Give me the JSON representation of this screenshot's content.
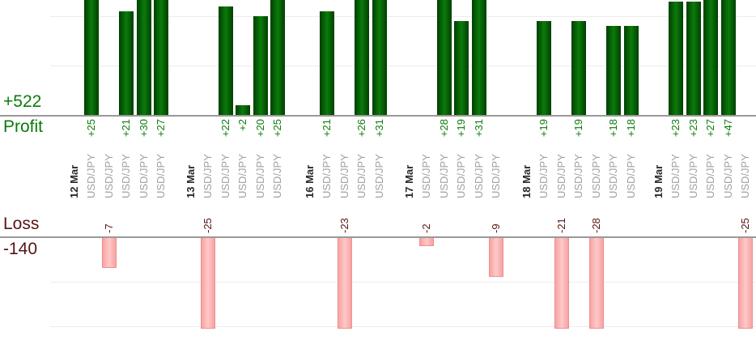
{
  "chart_data": {
    "type": "bar",
    "title": "",
    "description": "Daily trade results: profit bars above axis, loss bars below axis",
    "currency_pair": "USD/JPY",
    "profit": {
      "label": "Profit",
      "total": 522,
      "total_label": "+522"
    },
    "loss": {
      "label": "Loss",
      "total": -140,
      "total_label": "-140"
    },
    "gridlines": "horizontal, every 10 units, light gray",
    "legend_position": "none",
    "groups": [
      {
        "date": "12 Mar",
        "trades": [
          {
            "pair": "USD/JPY",
            "value": 25,
            "label": "+25"
          },
          {
            "pair": "USD/JPY",
            "value": -7,
            "label": "-7"
          },
          {
            "pair": "USD/JPY",
            "value": 21,
            "label": "+21"
          },
          {
            "pair": "USD/JPY",
            "value": 30,
            "label": "+30"
          },
          {
            "pair": "USD/JPY",
            "value": 27,
            "label": "+27"
          }
        ]
      },
      {
        "date": "13 Mar",
        "trades": [
          {
            "pair": "USD/JPY",
            "value": -25,
            "label": "-25"
          },
          {
            "pair": "USD/JPY",
            "value": 22,
            "label": "+22"
          },
          {
            "pair": "USD/JPY",
            "value": 2,
            "label": "+2"
          },
          {
            "pair": "USD/JPY",
            "value": 20,
            "label": "+20"
          },
          {
            "pair": "USD/JPY",
            "value": 25,
            "label": "+25"
          }
        ]
      },
      {
        "date": "16 Mar",
        "trades": [
          {
            "pair": "USD/JPY",
            "value": 21,
            "label": "+21"
          },
          {
            "pair": "USD/JPY",
            "value": -23,
            "label": "-23"
          },
          {
            "pair": "USD/JPY",
            "value": 26,
            "label": "+26"
          },
          {
            "pair": "USD/JPY",
            "value": 31,
            "label": "+31"
          }
        ]
      },
      {
        "date": "17 Mar",
        "trades": [
          {
            "pair": "USD/JPY",
            "value": -2,
            "label": "-2"
          },
          {
            "pair": "USD/JPY",
            "value": 28,
            "label": "+28"
          },
          {
            "pair": "USD/JPY",
            "value": 19,
            "label": "+19"
          },
          {
            "pair": "USD/JPY",
            "value": 31,
            "label": "+31"
          },
          {
            "pair": "USD/JPY",
            "value": -9,
            "label": "-9"
          }
        ]
      },
      {
        "date": "18 Mar",
        "trades": [
          {
            "pair": "USD/JPY",
            "value": 19,
            "label": "+19"
          },
          {
            "pair": "USD/JPY",
            "value": -21,
            "label": "-21"
          },
          {
            "pair": "USD/JPY",
            "value": 19,
            "label": "+19"
          },
          {
            "pair": "USD/JPY",
            "value": -28,
            "label": "-28"
          },
          {
            "pair": "USD/JPY",
            "value": 18,
            "label": "+18"
          },
          {
            "pair": "USD/JPY",
            "value": 18,
            "label": "+18"
          }
        ]
      },
      {
        "date": "19 Mar",
        "trades": [
          {
            "pair": "USD/JPY",
            "value": 23,
            "label": "+23"
          },
          {
            "pair": "USD/JPY",
            "value": 23,
            "label": "+23"
          },
          {
            "pair": "USD/JPY",
            "value": 27,
            "label": "+27"
          },
          {
            "pair": "USD/JPY",
            "value": 47,
            "label": "+47"
          },
          {
            "pair": "USD/JPY",
            "value": -25,
            "label": "-25"
          }
        ]
      }
    ],
    "colors": {
      "profit_bar": "#0b7b0b",
      "profit_bar_edge": "#003f00",
      "profit_text": "#0b7b0b",
      "loss_bar_fill": "#ffc8c8",
      "loss_bar_edge": "#f7a2a2",
      "loss_bar_border": "#ee9090",
      "loss_text": "#551414",
      "axis_line": "#999999",
      "gridline": "#ececec",
      "date_text": "#2a2a2a",
      "pair_text": "#a0a0a0"
    }
  }
}
